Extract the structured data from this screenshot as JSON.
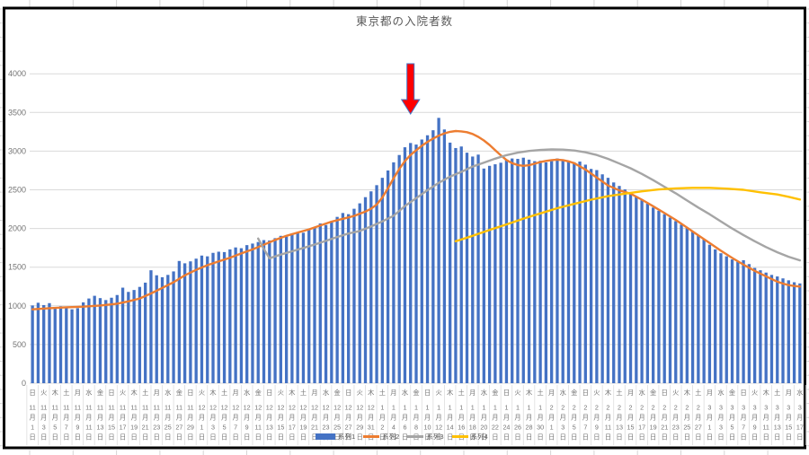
{
  "app": {
    "context": "spreadsheet-embedded-chart"
  },
  "chart_data": {
    "type": "bar",
    "subtype": "combo-bar-and-lines",
    "title": "東京都の入院者数",
    "xlabel": "",
    "ylabel": "",
    "ylim": [
      0,
      4000
    ],
    "yticks": [
      0,
      500,
      1000,
      1500,
      2000,
      2500,
      3000,
      3500,
      4000
    ],
    "grid": "horizontal",
    "legend_position": "bottom",
    "x_unit": "day",
    "x_first": "11月1日",
    "x_last": "3月17日",
    "tick_labels": [
      [
        11,
        1,
        "日"
      ],
      [
        11,
        3,
        "火"
      ],
      [
        11,
        5,
        "木"
      ],
      [
        11,
        7,
        "土"
      ],
      [
        11,
        9,
        "月"
      ],
      [
        11,
        11,
        "水"
      ],
      [
        11,
        13,
        "金"
      ],
      [
        11,
        15,
        "日"
      ],
      [
        11,
        17,
        "火"
      ],
      [
        11,
        19,
        "木"
      ],
      [
        11,
        21,
        "土"
      ],
      [
        11,
        23,
        "月"
      ],
      [
        11,
        25,
        "水"
      ],
      [
        11,
        27,
        "金"
      ],
      [
        11,
        29,
        "日"
      ],
      [
        12,
        1,
        "火"
      ],
      [
        12,
        3,
        "木"
      ],
      [
        12,
        5,
        "土"
      ],
      [
        12,
        7,
        "月"
      ],
      [
        12,
        9,
        "水"
      ],
      [
        12,
        11,
        "金"
      ],
      [
        12,
        13,
        "日"
      ],
      [
        12,
        15,
        "火"
      ],
      [
        12,
        17,
        "木"
      ],
      [
        12,
        19,
        "土"
      ],
      [
        12,
        21,
        "月"
      ],
      [
        12,
        23,
        "水"
      ],
      [
        12,
        25,
        "金"
      ],
      [
        12,
        27,
        "日"
      ],
      [
        12,
        29,
        "火"
      ],
      [
        12,
        31,
        "木"
      ],
      [
        1,
        2,
        "土"
      ],
      [
        1,
        4,
        "月"
      ],
      [
        1,
        6,
        "水"
      ],
      [
        1,
        8,
        "金"
      ],
      [
        1,
        10,
        "日"
      ],
      [
        1,
        12,
        "火"
      ],
      [
        1,
        14,
        "木"
      ],
      [
        1,
        16,
        "土"
      ],
      [
        1,
        18,
        "月"
      ],
      [
        1,
        20,
        "水"
      ],
      [
        1,
        22,
        "金"
      ],
      [
        1,
        24,
        "日"
      ],
      [
        1,
        26,
        "火"
      ],
      [
        1,
        28,
        "木"
      ],
      [
        1,
        30,
        "土"
      ],
      [
        2,
        1,
        "月"
      ],
      [
        2,
        3,
        "水"
      ],
      [
        2,
        5,
        "金"
      ],
      [
        2,
        7,
        "日"
      ],
      [
        2,
        9,
        "火"
      ],
      [
        2,
        11,
        "木"
      ],
      [
        2,
        13,
        "土"
      ],
      [
        2,
        15,
        "月"
      ],
      [
        2,
        17,
        "水"
      ],
      [
        2,
        19,
        "金"
      ],
      [
        2,
        21,
        "日"
      ],
      [
        2,
        23,
        "火"
      ],
      [
        2,
        25,
        "木"
      ],
      [
        2,
        27,
        "土"
      ],
      [
        3,
        1,
        "月"
      ],
      [
        3,
        3,
        "水"
      ],
      [
        3,
        5,
        "金"
      ],
      [
        3,
        7,
        "日"
      ],
      [
        3,
        9,
        "火"
      ],
      [
        3,
        11,
        "木"
      ],
      [
        3,
        13,
        "土"
      ],
      [
        3,
        15,
        "月"
      ],
      [
        3,
        17,
        "水"
      ]
    ],
    "date_suffixes": {
      "month": "月",
      "day": "日"
    },
    "series": [
      {
        "name": "系列1",
        "type": "bar",
        "color": "#4472C4",
        "values": [
          1005,
          1040,
          1010,
          1035,
          985,
          995,
          980,
          955,
          970,
          1045,
          1095,
          1130,
          1100,
          1075,
          1105,
          1140,
          1235,
          1180,
          1205,
          1245,
          1300,
          1460,
          1395,
          1370,
          1400,
          1445,
          1580,
          1550,
          1575,
          1610,
          1650,
          1640,
          1685,
          1700,
          1695,
          1730,
          1755,
          1745,
          1785,
          1805,
          1825,
          1850,
          1845,
          1875,
          1905,
          1895,
          1935,
          1955,
          1945,
          1985,
          2015,
          2065,
          2045,
          2095,
          2150,
          2200,
          2185,
          2255,
          2325,
          2405,
          2480,
          2560,
          2655,
          2750,
          2855,
          2950,
          3050,
          3105,
          3085,
          3150,
          3205,
          3270,
          3430,
          3280,
          3110,
          3040,
          3060,
          2980,
          2930,
          2955,
          2775,
          2810,
          2830,
          2850,
          2890,
          2905,
          2900,
          2915,
          2890,
          2870,
          2875,
          2855,
          2870,
          2905,
          2885,
          2865,
          2855,
          2865,
          2825,
          2770,
          2755,
          2700,
          2655,
          2595,
          2550,
          2505,
          2460,
          2410,
          2365,
          2320,
          2270,
          2230,
          2185,
          2140,
          2095,
          2050,
          2005,
          1960,
          1915,
          1860,
          1790,
          1730,
          1680,
          1640,
          1600,
          1570,
          1590,
          1540,
          1490,
          1460,
          1430,
          1400,
          1380,
          1355,
          1330,
          1305,
          1290
        ]
      },
      {
        "name": "系列2",
        "type": "line",
        "color": "#ED7D31",
        "points": [
          [
            0,
            955
          ],
          [
            3,
            970
          ],
          [
            6,
            982
          ],
          [
            9,
            990
          ],
          [
            12,
            1005
          ],
          [
            15,
            1028
          ],
          [
            17,
            1058
          ],
          [
            19,
            1095
          ],
          [
            21,
            1160
          ],
          [
            23,
            1232
          ],
          [
            25,
            1305
          ],
          [
            27,
            1395
          ],
          [
            29,
            1465
          ],
          [
            31,
            1525
          ],
          [
            33,
            1575
          ],
          [
            35,
            1622
          ],
          [
            37,
            1678
          ],
          [
            39,
            1730
          ],
          [
            41,
            1790
          ],
          [
            43,
            1852
          ],
          [
            45,
            1905
          ],
          [
            47,
            1948
          ],
          [
            49,
            1988
          ],
          [
            51,
            2038
          ],
          [
            53,
            2088
          ],
          [
            55,
            2125
          ],
          [
            57,
            2162
          ],
          [
            59,
            2218
          ],
          [
            60,
            2255
          ],
          [
            61,
            2310
          ],
          [
            62,
            2400
          ],
          [
            63,
            2520
          ],
          [
            64,
            2650
          ],
          [
            65,
            2770
          ],
          [
            66,
            2870
          ],
          [
            67,
            2950
          ],
          [
            68,
            3012
          ],
          [
            69,
            3070
          ],
          [
            70,
            3120
          ],
          [
            71,
            3162
          ],
          [
            72,
            3200
          ],
          [
            73,
            3230
          ],
          [
            74,
            3250
          ],
          [
            75,
            3260
          ],
          [
            76,
            3255
          ],
          [
            77,
            3245
          ],
          [
            78,
            3222
          ],
          [
            79,
            3185
          ],
          [
            80,
            3138
          ],
          [
            81,
            3080
          ],
          [
            82,
            3012
          ],
          [
            83,
            2945
          ],
          [
            84,
            2885
          ],
          [
            85,
            2845
          ],
          [
            86,
            2820
          ],
          [
            87,
            2810
          ],
          [
            88,
            2818
          ],
          [
            89,
            2838
          ],
          [
            90,
            2858
          ],
          [
            91,
            2874
          ],
          [
            92,
            2884
          ],
          [
            93,
            2890
          ],
          [
            94,
            2884
          ],
          [
            95,
            2868
          ],
          [
            96,
            2844
          ],
          [
            98,
            2762
          ],
          [
            100,
            2658
          ],
          [
            102,
            2556
          ],
          [
            104,
            2492
          ],
          [
            106,
            2450
          ],
          [
            108,
            2372
          ],
          [
            110,
            2288
          ],
          [
            112,
            2200
          ],
          [
            114,
            2110
          ],
          [
            116,
            2012
          ],
          [
            118,
            1912
          ],
          [
            120,
            1812
          ],
          [
            122,
            1712
          ],
          [
            124,
            1620
          ],
          [
            126,
            1532
          ],
          [
            128,
            1452
          ],
          [
            130,
            1382
          ],
          [
            132,
            1312
          ],
          [
            133,
            1288
          ],
          [
            134,
            1268
          ],
          [
            135,
            1256
          ],
          [
            136,
            1250
          ]
        ]
      },
      {
        "name": "系列3",
        "type": "line",
        "color": "#A5A5A5",
        "points": [
          [
            40,
            1870
          ],
          [
            41,
            1735
          ],
          [
            42,
            1615
          ],
          [
            44,
            1662
          ],
          [
            46,
            1705
          ],
          [
            48,
            1748
          ],
          [
            50,
            1792
          ],
          [
            52,
            1840
          ],
          [
            54,
            1890
          ],
          [
            56,
            1935
          ],
          [
            58,
            1968
          ],
          [
            60,
            2025
          ],
          [
            62,
            2092
          ],
          [
            64,
            2165
          ],
          [
            66,
            2290
          ],
          [
            68,
            2392
          ],
          [
            70,
            2495
          ],
          [
            72,
            2590
          ],
          [
            74,
            2670
          ],
          [
            76,
            2732
          ],
          [
            78,
            2800
          ],
          [
            80,
            2852
          ],
          [
            82,
            2902
          ],
          [
            84,
            2948
          ],
          [
            86,
            2980
          ],
          [
            88,
            3002
          ],
          [
            90,
            3015
          ],
          [
            92,
            3022
          ],
          [
            94,
            3020
          ],
          [
            96,
            3008
          ],
          [
            98,
            2985
          ],
          [
            100,
            2950
          ],
          [
            102,
            2900
          ],
          [
            104,
            2840
          ],
          [
            106,
            2778
          ],
          [
            108,
            2705
          ],
          [
            110,
            2625
          ],
          [
            112,
            2540
          ],
          [
            114,
            2455
          ],
          [
            116,
            2362
          ],
          [
            118,
            2270
          ],
          [
            120,
            2185
          ],
          [
            122,
            2090
          ],
          [
            124,
            2000
          ],
          [
            126,
            1915
          ],
          [
            128,
            1835
          ],
          [
            130,
            1760
          ],
          [
            132,
            1692
          ],
          [
            134,
            1635
          ],
          [
            136,
            1588
          ]
        ]
      },
      {
        "name": "系列4",
        "type": "line",
        "color": "#FFC000",
        "points": [
          [
            75,
            1835
          ],
          [
            78,
            1905
          ],
          [
            81,
            1982
          ],
          [
            84,
            2052
          ],
          [
            87,
            2128
          ],
          [
            90,
            2195
          ],
          [
            93,
            2262
          ],
          [
            96,
            2318
          ],
          [
            99,
            2372
          ],
          [
            102,
            2418
          ],
          [
            105,
            2450
          ],
          [
            108,
            2480
          ],
          [
            111,
            2505
          ],
          [
            114,
            2518
          ],
          [
            117,
            2525
          ],
          [
            120,
            2525
          ],
          [
            123,
            2515
          ],
          [
            126,
            2500
          ],
          [
            129,
            2468
          ],
          [
            132,
            2440
          ],
          [
            134,
            2410
          ],
          [
            136,
            2375
          ]
        ]
      }
    ],
    "annotation": {
      "shape": "down-arrow",
      "day_index": 67,
      "fill": "#FF0000",
      "stroke": "#4472C4"
    },
    "colors": {
      "grid": "#D9D9D9",
      "axis_text": "#737373",
      "title_text": "#595959",
      "frame": "#000000",
      "cell_grid": "#D5D5D5"
    }
  }
}
